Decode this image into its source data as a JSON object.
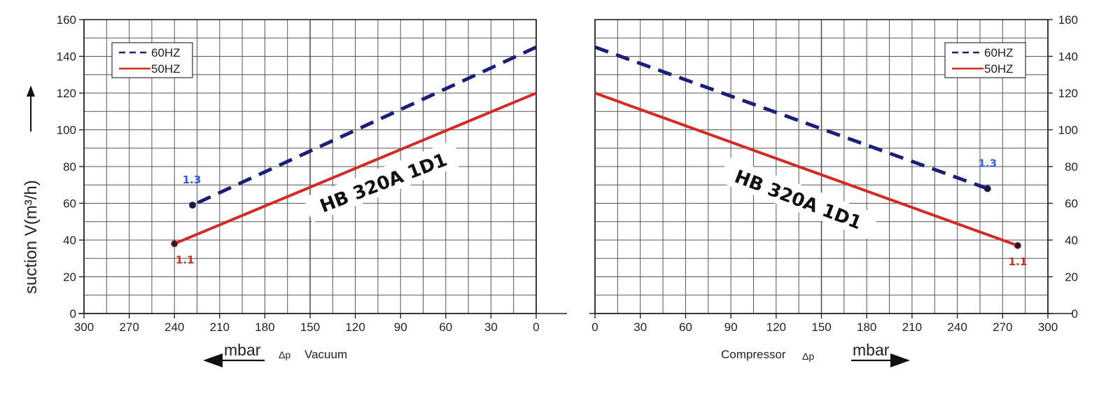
{
  "chart_data": [
    {
      "type": "line",
      "title": "",
      "model_label": "HB 320A 1D1",
      "ylabel": "suction V(m³/h)",
      "xlabel": "Vacuum",
      "xlabel_symbol": "Δp",
      "unit_label": "mbar",
      "arrow_direction": "left",
      "xlim": [
        300,
        0
      ],
      "ylim": [
        0,
        160
      ],
      "x_ticks": [
        "300",
        "270",
        "240",
        "210",
        "180",
        "150",
        "120",
        "90",
        "60",
        "30",
        "0"
      ],
      "y_ticks": [
        "0",
        "20",
        "40",
        "60",
        "80",
        "100",
        "120",
        "140",
        "160"
      ],
      "y_axis_side": "left",
      "legend": {
        "placement": "top-left",
        "entries": [
          "60HZ",
          "50HZ"
        ]
      },
      "grid": true,
      "series": [
        {
          "name": "60HZ",
          "color": "#1c1f7a",
          "style": "dashed",
          "x": [
            0,
            228
          ],
          "y": [
            145,
            59
          ],
          "end_label": "1.3",
          "end_label_color": "#2a59e8"
        },
        {
          "name": "50HZ",
          "color": "#d42a25",
          "style": "solid",
          "x": [
            0,
            240
          ],
          "y": [
            120,
            38
          ],
          "end_label": "1.1",
          "end_label_color": "#d42a25"
        }
      ]
    },
    {
      "type": "line",
      "title": "",
      "model_label": "HB 320A 1D1",
      "ylabel": "",
      "xlabel": "Compressor",
      "xlabel_symbol": "Δp",
      "unit_label": "mbar",
      "arrow_direction": "right",
      "xlim": [
        0,
        300
      ],
      "ylim": [
        0,
        160
      ],
      "x_ticks": [
        "0",
        "30",
        "60",
        "90",
        "120",
        "150",
        "180",
        "210",
        "240",
        "270",
        "300"
      ],
      "y_ticks": [
        "0",
        "20",
        "40",
        "60",
        "80",
        "100",
        "120",
        "140",
        "160"
      ],
      "y_axis_side": "right",
      "legend": {
        "placement": "top-right",
        "entries": [
          "60HZ",
          "50HZ"
        ]
      },
      "grid": true,
      "series": [
        {
          "name": "60HZ",
          "color": "#1c1f7a",
          "style": "dashed",
          "x": [
            0,
            260
          ],
          "y": [
            145,
            68
          ],
          "end_label": "1.3",
          "end_label_color": "#2a59e8"
        },
        {
          "name": "50HZ",
          "color": "#d42a25",
          "style": "solid",
          "x": [
            0,
            280
          ],
          "y": [
            120,
            37
          ],
          "end_label": "1.1",
          "end_label_color": "#d42a25"
        }
      ]
    }
  ]
}
